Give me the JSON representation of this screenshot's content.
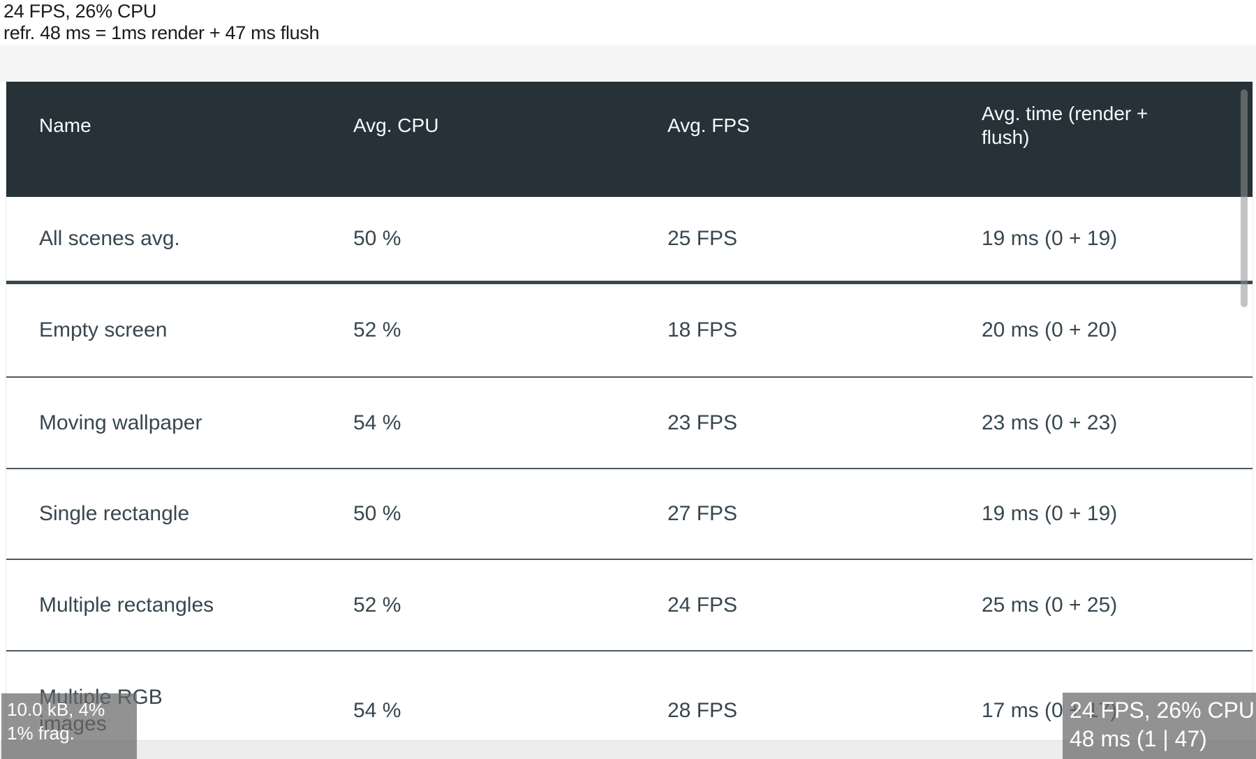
{
  "perf_status": {
    "line1": "24 FPS, 26% CPU",
    "line2": "refr. 48 ms = 1ms render + 47 ms flush"
  },
  "table": {
    "columns": {
      "name": "Name",
      "cpu": "Avg. CPU",
      "fps": "Avg. FPS",
      "time": "Avg. time (render +\nflush)"
    },
    "summary_row": {
      "name": "All scenes avg.",
      "cpu": "50 %",
      "fps": "25 FPS",
      "time": "19 ms (0 + 19)"
    },
    "rows": [
      {
        "name": "Empty screen",
        "cpu": "52 %",
        "fps": "18 FPS",
        "time": "20 ms (0 + 20)"
      },
      {
        "name": "Moving wallpaper",
        "cpu": "54 %",
        "fps": "23 FPS",
        "time": "23 ms (0 + 23)"
      },
      {
        "name": "Single rectangle",
        "cpu": "50 %",
        "fps": "27 FPS",
        "time": "19 ms (0 + 19)"
      },
      {
        "name": "Multiple rectangles",
        "cpu": "52 %",
        "fps": "24 FPS",
        "time": "25 ms (0 + 25)"
      },
      {
        "name": "Multiple RGB\nimages",
        "cpu": "54 %",
        "fps": "28 FPS",
        "time": "17 ms (0 + 17)"
      }
    ]
  },
  "overlays": {
    "bottom_left": {
      "line1": "10.0 kB, 4%",
      "line2": "1% frag."
    },
    "bottom_right": {
      "line1": "24 FPS, 26% CPU",
      "line2": "48 ms (1 | 47)"
    }
  },
  "colors": {
    "header_bg": "#263238",
    "header_text": "#f7f9fa",
    "body_text": "#37474f",
    "separator": "#4a5963",
    "summary_separator": "#37474f",
    "top_strip": "#f5f5f5",
    "bottom_strip": "#ededed",
    "overlay_bg": "#686868",
    "overlay_text": "#ffffff"
  }
}
